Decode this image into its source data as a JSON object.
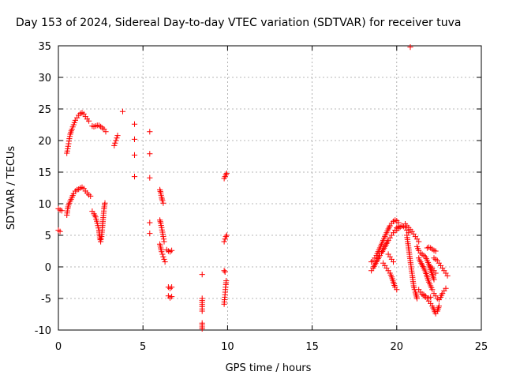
{
  "chart_data": {
    "type": "scatter",
    "title": "Day 153 of 2024, Sidereal Day-to-day VTEC variation (SDTVAR) for receiver tuva",
    "xlabel": "GPS time / hours",
    "ylabel": "SDTVAR / TECUs",
    "xlim": [
      0,
      25
    ],
    "ylim": [
      -10,
      35
    ],
    "xticks": [
      "0",
      "5",
      "10",
      "15",
      "20",
      "25"
    ],
    "yticks": [
      "-10",
      "-5",
      "0",
      "5",
      "10",
      "15",
      "20",
      "25",
      "30",
      "35"
    ],
    "grid": true,
    "marker": "+",
    "series_color": "#ff0000",
    "segments": [
      [
        [
          0.0,
          9.2
        ],
        [
          0.1,
          9.0
        ],
        [
          0.2,
          8.9
        ]
      ],
      [
        [
          0.0,
          5.8
        ],
        [
          0.1,
          5.6
        ]
      ],
      [
        [
          0.5,
          8.2
        ],
        [
          0.55,
          9.2
        ],
        [
          0.6,
          9.8
        ],
        [
          0.7,
          10.4
        ],
        [
          0.8,
          11.0
        ],
        [
          0.9,
          11.6
        ],
        [
          1.0,
          12.0
        ],
        [
          1.1,
          12.2
        ],
        [
          1.2,
          12.3
        ],
        [
          1.3,
          12.5
        ],
        [
          1.4,
          12.6
        ],
        [
          1.5,
          12.4
        ],
        [
          1.6,
          12.0
        ],
        [
          1.7,
          11.7
        ],
        [
          1.8,
          11.4
        ],
        [
          1.9,
          11.2
        ]
      ],
      [
        [
          0.5,
          18.0
        ],
        [
          0.55,
          18.7
        ],
        [
          0.6,
          19.5
        ],
        [
          0.65,
          20.3
        ],
        [
          0.7,
          21.0
        ],
        [
          0.8,
          21.8
        ],
        [
          0.9,
          22.5
        ],
        [
          1.0,
          23.2
        ],
        [
          1.1,
          23.6
        ],
        [
          1.2,
          24.0
        ],
        [
          1.3,
          24.3
        ],
        [
          1.4,
          24.4
        ],
        [
          1.5,
          24.2
        ],
        [
          1.6,
          23.8
        ],
        [
          1.7,
          23.4
        ],
        [
          1.8,
          23.1
        ]
      ],
      [
        [
          2.0,
          22.3
        ],
        [
          2.1,
          22.2
        ],
        [
          2.2,
          22.3
        ],
        [
          2.3,
          22.4
        ],
        [
          2.4,
          22.4
        ],
        [
          2.5,
          22.2
        ],
        [
          2.6,
          22.0
        ],
        [
          2.7,
          21.8
        ],
        [
          2.8,
          21.4
        ]
      ],
      [
        [
          2.0,
          8.8
        ],
        [
          2.1,
          8.4
        ],
        [
          2.2,
          7.9
        ],
        [
          2.3,
          6.9
        ],
        [
          2.4,
          5.8
        ],
        [
          2.45,
          4.6
        ],
        [
          2.5,
          4.0
        ],
        [
          2.55,
          4.8
        ],
        [
          2.6,
          6.2
        ],
        [
          2.65,
          7.8
        ],
        [
          2.7,
          9.2
        ],
        [
          2.75,
          10.1
        ]
      ],
      [
        [
          3.3,
          19.2
        ],
        [
          3.35,
          19.6
        ],
        [
          3.4,
          20.0
        ],
        [
          3.45,
          20.4
        ],
        [
          3.5,
          20.8
        ]
      ],
      [
        [
          3.8,
          24.6
        ]
      ],
      [
        [
          4.5,
          22.6
        ]
      ],
      [
        [
          4.5,
          20.2
        ]
      ],
      [
        [
          4.5,
          17.7
        ]
      ],
      [
        [
          4.5,
          14.3
        ]
      ],
      [
        [
          5.4,
          21.4
        ]
      ],
      [
        [
          5.4,
          17.9
        ]
      ],
      [
        [
          5.4,
          14.1
        ]
      ],
      [
        [
          5.4,
          7.0
        ]
      ],
      [
        [
          5.4,
          5.3
        ]
      ],
      [
        [
          6.0,
          12.2
        ],
        [
          6.05,
          11.7
        ],
        [
          6.1,
          11.0
        ],
        [
          6.15,
          10.5
        ],
        [
          6.2,
          10.1
        ]
      ],
      [
        [
          6.0,
          7.4
        ],
        [
          6.05,
          6.9
        ],
        [
          6.1,
          6.2
        ],
        [
          6.15,
          5.5
        ],
        [
          6.2,
          4.8
        ],
        [
          6.25,
          4.0
        ]
      ],
      [
        [
          6.0,
          3.6
        ],
        [
          6.05,
          3.0
        ],
        [
          6.1,
          2.4
        ],
        [
          6.15,
          2.0
        ],
        [
          6.2,
          1.6
        ],
        [
          6.25,
          1.2
        ],
        [
          6.3,
          0.8
        ]
      ],
      [
        [
          6.4,
          2.7
        ],
        [
          6.5,
          2.5
        ],
        [
          6.6,
          2.4
        ],
        [
          6.7,
          2.6
        ]
      ],
      [
        [
          6.5,
          -3.2
        ],
        [
          6.6,
          -3.4
        ],
        [
          6.7,
          -3.2
        ]
      ],
      [
        [
          6.5,
          -4.6
        ],
        [
          6.6,
          -4.9
        ],
        [
          6.7,
          -4.7
        ]
      ],
      [
        [
          8.5,
          -1.2
        ]
      ],
      [
        [
          8.5,
          -5.0
        ],
        [
          8.5,
          -6.3
        ],
        [
          8.5,
          -7.0
        ]
      ],
      [
        [
          8.5,
          -8.9
        ],
        [
          8.5,
          -9.5
        ],
        [
          8.5,
          -9.8
        ]
      ],
      [
        [
          9.8,
          14.0
        ],
        [
          9.85,
          14.3
        ],
        [
          9.9,
          14.6
        ],
        [
          9.95,
          14.8
        ]
      ],
      [
        [
          9.8,
          4.0
        ],
        [
          9.85,
          4.4
        ],
        [
          9.9,
          4.8
        ],
        [
          9.95,
          5.0
        ]
      ],
      [
        [
          9.8,
          -0.6
        ],
        [
          9.85,
          -0.8
        ]
      ],
      [
        [
          9.8,
          -5.9
        ],
        [
          9.82,
          -5.2
        ],
        [
          9.85,
          -4.4
        ],
        [
          9.87,
          -3.6
        ],
        [
          9.9,
          -2.8
        ],
        [
          9.92,
          -2.2
        ]
      ],
      [
        [
          18.5,
          0.8
        ],
        [
          18.6,
          1.0
        ],
        [
          18.7,
          1.4
        ],
        [
          18.8,
          1.8
        ],
        [
          18.9,
          2.4
        ],
        [
          19.0,
          3.0
        ],
        [
          19.1,
          3.6
        ],
        [
          19.2,
          4.2
        ],
        [
          19.3,
          4.8
        ],
        [
          19.4,
          5.4
        ],
        [
          19.5,
          6.0
        ],
        [
          19.6,
          6.5
        ],
        [
          19.7,
          6.9
        ],
        [
          19.8,
          7.2
        ],
        [
          19.9,
          7.4
        ],
        [
          20.0,
          7.3
        ],
        [
          20.1,
          7.0
        ]
      ],
      [
        [
          18.5,
          -0.6
        ],
        [
          18.6,
          -0.2
        ],
        [
          18.7,
          0.3
        ],
        [
          18.8,
          0.8
        ],
        [
          18.9,
          1.3
        ],
        [
          19.0,
          1.8
        ],
        [
          19.1,
          2.2
        ],
        [
          19.2,
          2.7
        ],
        [
          19.3,
          3.2
        ],
        [
          19.4,
          3.7
        ],
        [
          19.5,
          4.2
        ],
        [
          19.6,
          4.6
        ],
        [
          19.7,
          5.0
        ],
        [
          19.8,
          5.4
        ],
        [
          19.9,
          5.8
        ],
        [
          20.0,
          6.2
        ],
        [
          20.1,
          6.4
        ]
      ],
      [
        [
          19.2,
          0.6
        ],
        [
          19.3,
          0.2
        ],
        [
          19.4,
          -0.2
        ],
        [
          19.5,
          -0.6
        ],
        [
          19.6,
          -1.0
        ],
        [
          19.7,
          -1.6
        ],
        [
          19.8,
          -2.4
        ],
        [
          19.9,
          -3.2
        ],
        [
          20.0,
          -3.6
        ]
      ],
      [
        [
          19.5,
          2.0
        ],
        [
          19.6,
          1.6
        ],
        [
          19.7,
          1.2
        ],
        [
          19.8,
          0.8
        ]
      ],
      [
        [
          20.0,
          5.8
        ],
        [
          20.1,
          6.1
        ],
        [
          20.2,
          6.3
        ],
        [
          20.3,
          6.5
        ],
        [
          20.4,
          6.4
        ],
        [
          20.5,
          6.2
        ],
        [
          20.6,
          5.8
        ],
        [
          20.7,
          5.4
        ]
      ],
      [
        [
          20.5,
          6.8
        ],
        [
          20.6,
          6.5
        ],
        [
          20.7,
          6.2
        ],
        [
          20.8,
          5.9
        ],
        [
          20.9,
          5.6
        ],
        [
          21.0,
          5.2
        ],
        [
          21.1,
          4.8
        ],
        [
          21.2,
          4.4
        ],
        [
          21.3,
          4.0
        ]
      ],
      [
        [
          20.6,
          5.0
        ],
        [
          20.65,
          4.0
        ],
        [
          20.7,
          3.0
        ],
        [
          20.75,
          2.0
        ],
        [
          20.8,
          1.0
        ],
        [
          20.85,
          0.0
        ],
        [
          20.9,
          -1.0
        ],
        [
          20.95,
          -2.0
        ],
        [
          21.0,
          -3.0
        ],
        [
          21.05,
          -3.6
        ],
        [
          21.1,
          -4.0
        ],
        [
          21.15,
          -4.5
        ],
        [
          21.2,
          -5.0
        ]
      ],
      [
        [
          21.2,
          3.2
        ],
        [
          21.3,
          2.6
        ],
        [
          21.4,
          2.2
        ],
        [
          21.5,
          2.0
        ],
        [
          21.6,
          1.8
        ],
        [
          21.7,
          1.6
        ],
        [
          21.8,
          1.0
        ],
        [
          21.9,
          0.4
        ],
        [
          22.0,
          -0.4
        ],
        [
          22.1,
          -1.2
        ],
        [
          22.2,
          -2.0
        ]
      ],
      [
        [
          21.3,
          1.4
        ],
        [
          21.4,
          0.8
        ],
        [
          21.5,
          0.3
        ],
        [
          21.6,
          -0.2
        ],
        [
          21.7,
          -0.8
        ],
        [
          21.8,
          -1.6
        ],
        [
          21.9,
          -2.4
        ],
        [
          22.0,
          -3.0
        ],
        [
          22.1,
          -3.6
        ]
      ],
      [
        [
          21.3,
          -3.6
        ],
        [
          21.4,
          -4.0
        ],
        [
          21.5,
          -4.3
        ],
        [
          21.6,
          -4.6
        ],
        [
          21.7,
          -4.8
        ],
        [
          21.8,
          -5.0
        ],
        [
          21.9,
          -5.0
        ],
        [
          22.0,
          -4.8
        ]
      ],
      [
        [
          21.6,
          -4.4
        ],
        [
          21.7,
          -4.6
        ],
        [
          21.8,
          -5.0
        ],
        [
          21.9,
          -5.4
        ],
        [
          22.0,
          -5.8
        ],
        [
          22.1,
          -6.2
        ],
        [
          22.2,
          -6.8
        ],
        [
          22.3,
          -7.4
        ],
        [
          22.4,
          -7.0
        ],
        [
          22.5,
          -6.2
        ]
      ],
      [
        [
          21.8,
          3.0
        ],
        [
          21.9,
          3.1
        ],
        [
          22.0,
          3.0
        ],
        [
          22.1,
          2.8
        ],
        [
          22.2,
          2.6
        ],
        [
          22.3,
          2.5
        ]
      ],
      [
        [
          22.0,
          0.0
        ],
        [
          22.1,
          -0.2
        ],
        [
          22.2,
          -0.6
        ],
        [
          22.3,
          -1.0
        ]
      ],
      [
        [
          22.2,
          -4.2
        ],
        [
          22.3,
          -4.6
        ],
        [
          22.4,
          -5.0
        ],
        [
          22.5,
          -5.2
        ],
        [
          22.6,
          -4.8
        ],
        [
          22.7,
          -4.2
        ],
        [
          22.8,
          -3.8
        ],
        [
          22.9,
          -3.4
        ]
      ],
      [
        [
          22.2,
          1.4
        ],
        [
          22.3,
          1.2
        ],
        [
          22.4,
          1.0
        ],
        [
          22.5,
          0.6
        ],
        [
          22.6,
          0.2
        ],
        [
          22.7,
          -0.2
        ],
        [
          22.8,
          -0.6
        ],
        [
          22.9,
          -1.0
        ],
        [
          23.0,
          -1.4
        ]
      ],
      [
        [
          20.8,
          34.8
        ]
      ]
    ]
  }
}
